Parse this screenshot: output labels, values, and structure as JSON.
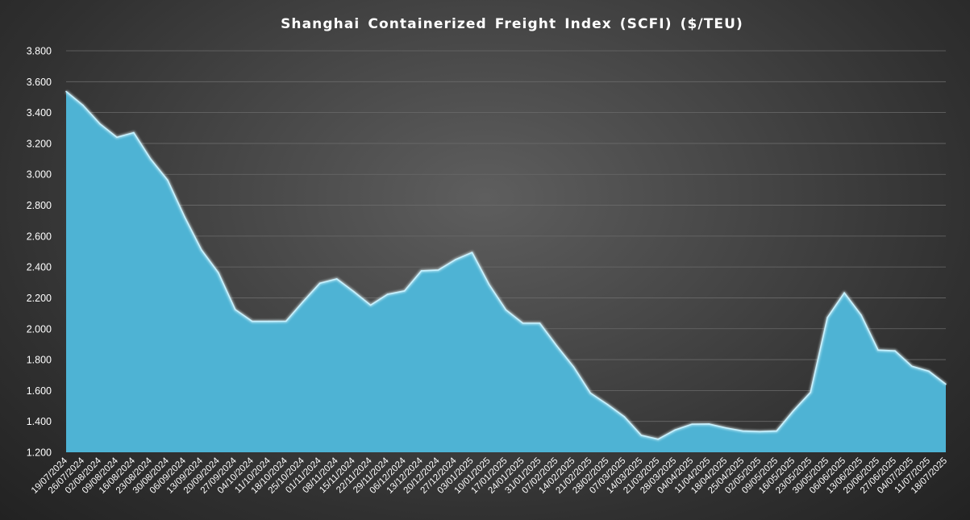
{
  "chart_data": {
    "type": "area",
    "title": "Shanghai Containerized Freight Index  (SCFI) ($/TEU)",
    "xlabel": "",
    "ylabel": "",
    "ylim": [
      1200,
      3800
    ],
    "y_ticks": [
      1200,
      1400,
      1600,
      1800,
      2000,
      2200,
      2400,
      2600,
      2800,
      3000,
      3200,
      3400,
      3600,
      3800
    ],
    "y_tick_labels": [
      "1.200",
      "1.400",
      "1.600",
      "1.800",
      "2.000",
      "2.200",
      "2.400",
      "2.600",
      "2.800",
      "3.000",
      "3.200",
      "3.400",
      "3.600",
      "3.800"
    ],
    "grid": true,
    "legend": "none",
    "colors": {
      "fill": "#4eb3d4",
      "outline": "#c8f2ff",
      "text": "#ffffff",
      "grid": "#6a6a6a"
    },
    "categories": [
      "19/07/2024",
      "26/07/2024",
      "02/08/2024",
      "09/08/2024",
      "16/08/2024",
      "23/08/2024",
      "30/08/2024",
      "06/09/2024",
      "13/09/2024",
      "20/09/2024",
      "27/09/2024",
      "04/10/2024",
      "11/10/2024",
      "18/10/2024",
      "25/10/2024",
      "01/11/2024",
      "08/11/2024",
      "15/11/2024",
      "22/11/2024",
      "29/11/2024",
      "06/12/2024",
      "13/12/2024",
      "20/12/2024",
      "27/12/2024",
      "03/01/2025",
      "10/01/2025",
      "17/01/2025",
      "24/01/2025",
      "31/01/2025",
      "07/02/2025",
      "14/02/2025",
      "21/02/2025",
      "28/02/2025",
      "07/03/2025",
      "14/03/2025",
      "21/03/2025",
      "28/03/2025",
      "04/04/2025",
      "11/04/2025",
      "18/04/2025",
      "25/04/2025",
      "02/05/2025",
      "09/05/2025",
      "16/05/2025",
      "23/05/2025",
      "30/05/2025",
      "06/06/2025",
      "13/06/2025",
      "20/06/2025",
      "27/06/2025",
      "04/07/2025",
      "11/07/2025",
      "18/07/2025"
    ],
    "values": [
      3537,
      3447,
      3327,
      3240,
      3270,
      3099,
      2963,
      2726,
      2511,
      2363,
      2124,
      2048,
      2048,
      2049,
      2175,
      2295,
      2323,
      2241,
      2153,
      2223,
      2245,
      2375,
      2380,
      2447,
      2494,
      2287,
      2122,
      2036,
      2036,
      1890,
      1753,
      1583,
      1510,
      1430,
      1310,
      1285,
      1345,
      1382,
      1383,
      1358,
      1338,
      1334,
      1338,
      1470,
      1588,
      2072,
      2233,
      2088,
      1862,
      1857,
      1757,
      1725,
      1641
    ]
  }
}
